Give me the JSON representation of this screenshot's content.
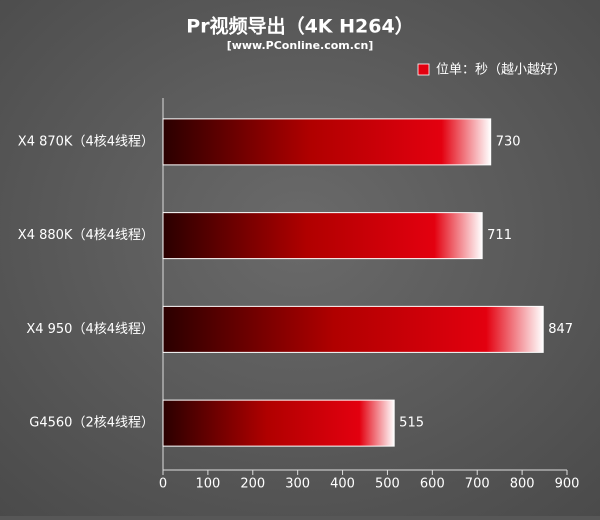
{
  "chart_data": {
    "type": "hbar",
    "title": "Pr视频导出（4K H264）",
    "subtitle": "[www.PConline.com.cn]",
    "categories": [
      "X4 870K（4核4线程）",
      "X4 880K（4核4线程）",
      "X4 950（4核4线程）",
      "G4560（2核4线程）"
    ],
    "series": [
      {
        "name": "位单：秒（越小越好）",
        "color": "#e3000f",
        "values": [
          730,
          711,
          847,
          515
        ]
      }
    ],
    "xlim": [
      0,
      900
    ],
    "xticks": [
      0,
      100,
      200,
      300,
      400,
      500,
      600,
      700,
      800,
      900
    ],
    "legend": "top-right"
  }
}
